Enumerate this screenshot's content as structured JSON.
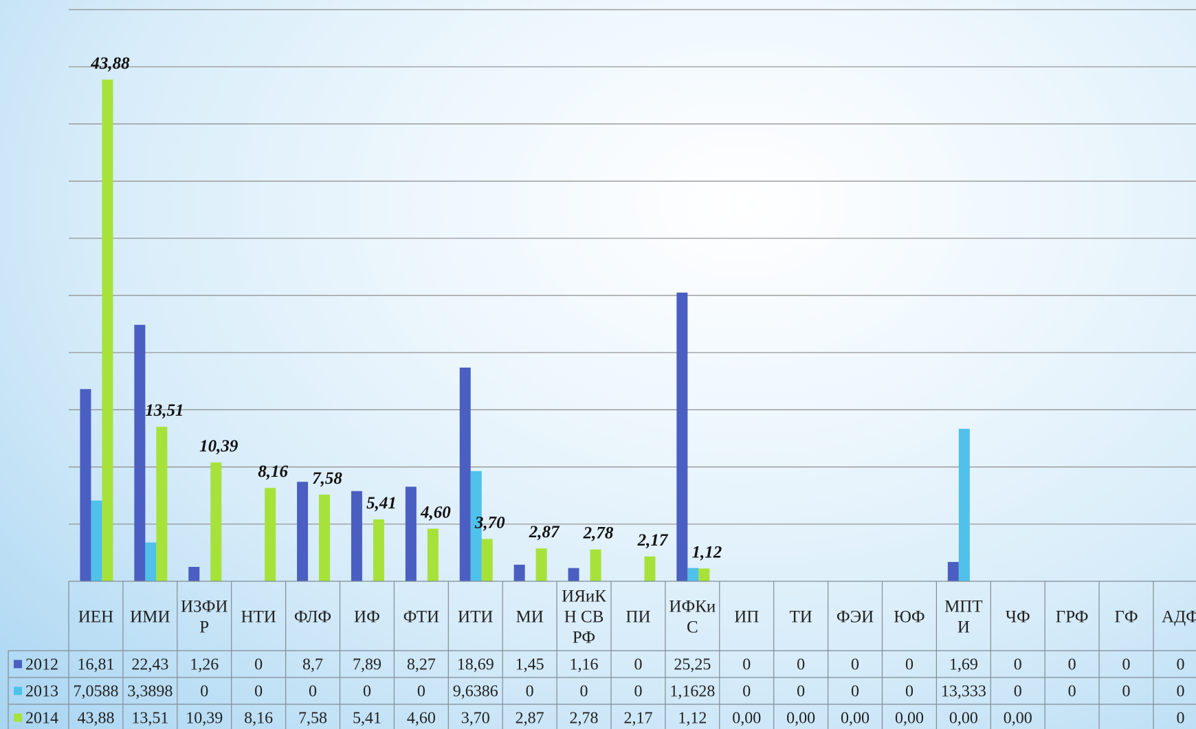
{
  "chart_data": {
    "type": "bar",
    "categories": [
      "ИЕН",
      "ИМИ",
      "ИЗФИР",
      "НТИ",
      "ФЛФ",
      "ИФ",
      "ФТИ",
      "ИТИ",
      "МИ",
      "ИЯиКН СВ РФ",
      "ПИ",
      "ИФКиС",
      "ИП",
      "ТИ",
      "ФЭИ",
      "ЮФ",
      "МПТИ",
      "ЧФ",
      "ГРФ",
      "ГФ",
      "АДФ"
    ],
    "category_lines": [
      [
        "ИЕН"
      ],
      [
        "ИМИ"
      ],
      [
        "ИЗФИ",
        "Р"
      ],
      [
        "НТИ"
      ],
      [
        "ФЛФ"
      ],
      [
        "ИФ"
      ],
      [
        "ФТИ"
      ],
      [
        "ИТИ"
      ],
      [
        "МИ"
      ],
      [
        "ИЯиК",
        "Н СВ",
        "РФ"
      ],
      [
        "ПИ"
      ],
      [
        "ИФКи",
        "С"
      ],
      [
        "ИП"
      ],
      [
        "ТИ"
      ],
      [
        "ФЭИ"
      ],
      [
        "ЮФ"
      ],
      [
        "МПТ",
        "И"
      ],
      [
        "ЧФ"
      ],
      [
        "ГРФ"
      ],
      [
        "ГФ"
      ],
      [
        "АДФ"
      ]
    ],
    "series": [
      {
        "name": "2012",
        "color": "#4a5fc1",
        "values": [
          16.81,
          22.43,
          1.26,
          0,
          8.7,
          7.89,
          8.27,
          18.69,
          1.45,
          1.16,
          0,
          25.25,
          0,
          0,
          0,
          0,
          1.69,
          0,
          0,
          0,
          0
        ],
        "table": [
          "16,81",
          "22,43",
          "1,26",
          "0",
          "8,7",
          "7,89",
          "8,27",
          "18,69",
          "1,45",
          "1,16",
          "0",
          "25,25",
          "0",
          "0",
          "0",
          "0",
          "1,69",
          "0",
          "0",
          "0",
          "0"
        ]
      },
      {
        "name": "2013",
        "color": "#4fc1ea",
        "values": [
          7.0588,
          3.3898,
          0,
          0,
          0,
          0,
          0,
          9.6386,
          0,
          0,
          0,
          1.1628,
          0,
          0,
          0,
          0,
          13.333,
          0,
          0,
          0,
          0
        ],
        "table": [
          "7,0588",
          "3,3898",
          "0",
          "0",
          "0",
          "0",
          "0",
          "9,6386",
          "0",
          "0",
          "0",
          "1,1628",
          "0",
          "0",
          "0",
          "0",
          "13,333",
          "0",
          "0",
          "0",
          "0"
        ]
      },
      {
        "name": "2014",
        "color": "#a6e23a",
        "values": [
          43.88,
          13.51,
          10.39,
          8.16,
          7.58,
          5.41,
          4.6,
          3.7,
          2.87,
          2.78,
          2.17,
          1.12,
          0,
          0,
          0,
          0,
          0,
          0,
          null,
          null,
          0
        ],
        "table": [
          "43,88",
          "13,51",
          "10,39",
          "8,16",
          "7,58",
          "5,41",
          "4,60",
          "3,70",
          "2,87",
          "2,78",
          "2,17",
          "1,12",
          "0,00",
          "0,00",
          "0,00",
          "0,00",
          "0,00",
          "0,00",
          "",
          "",
          "0"
        ],
        "data_labels": [
          "43,88",
          "13,51",
          "10,39",
          "8,16",
          "7,58",
          "5,41",
          "4,60",
          "3,70",
          "2,87",
          "2,78",
          "2,17",
          "1,12"
        ]
      }
    ],
    "ylim": [
      0,
      50
    ],
    "major_unit": 5,
    "grid": true,
    "data_table": true
  }
}
